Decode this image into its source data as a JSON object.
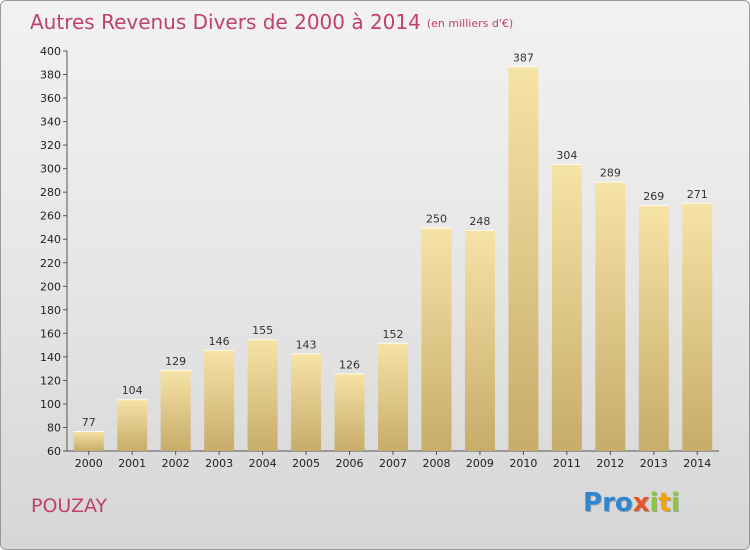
{
  "chart_data": {
    "type": "bar",
    "title": "Autres Revenus Divers de 2000 à 2014",
    "unit_note": "(en milliers d'€)",
    "categories": [
      "2000",
      "2001",
      "2002",
      "2003",
      "2004",
      "2005",
      "2006",
      "2007",
      "2008",
      "2009",
      "2010",
      "2011",
      "2012",
      "2013",
      "2014"
    ],
    "values": [
      77,
      104,
      129,
      146,
      155,
      143,
      126,
      152,
      250,
      248,
      387,
      304,
      289,
      269,
      271
    ],
    "ylim": [
      60,
      400
    ],
    "yticks": [
      60,
      80,
      100,
      120,
      140,
      160,
      180,
      200,
      220,
      240,
      260,
      280,
      300,
      320,
      340,
      360,
      380,
      400
    ],
    "grid": false,
    "colors": {
      "bar_light": "#f6e3a6",
      "bar_dark": "#c7ac6a",
      "title": "#c0406e"
    }
  },
  "commune": "POUZAY",
  "logo": {
    "letters": [
      {
        "ch": "P",
        "color": "#2f86d0"
      },
      {
        "ch": "r",
        "color": "#2f86d0"
      },
      {
        "ch": "o",
        "color": "#2f86d0"
      },
      {
        "ch": "x",
        "color": "#e8542a"
      },
      {
        "ch": "i",
        "color": "#8cc63f"
      },
      {
        "ch": "t",
        "color": "#f4a300"
      },
      {
        "ch": "i",
        "color": "#8cc63f"
      }
    ]
  }
}
